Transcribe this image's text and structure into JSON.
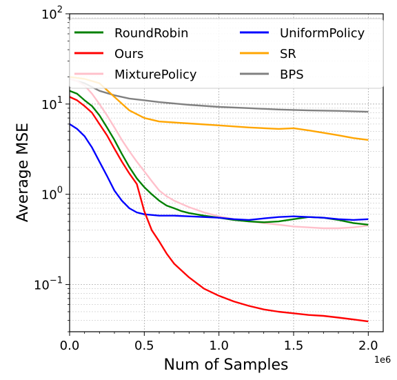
{
  "chart_data": {
    "type": "line",
    "xlabel": "Num of Samples",
    "ylabel": "Average MSE",
    "x_offset_label": "1e6",
    "xlim": [
      0,
      2100000
    ],
    "ylim": [
      0.03,
      100
    ],
    "yscale": "log",
    "grid": true,
    "legend_placement": "top",
    "x_ticks": [
      {
        "value": 0,
        "label": "0.0"
      },
      {
        "value": 500000,
        "label": "0.5"
      },
      {
        "value": 1000000,
        "label": "1.0"
      },
      {
        "value": 1500000,
        "label": "1.5"
      },
      {
        "value": 2000000,
        "label": "2.0"
      }
    ],
    "y_ticks": [
      {
        "value": 0.1,
        "base": "10",
        "exp": "−1"
      },
      {
        "value": 1,
        "base": "10",
        "exp": "0"
      },
      {
        "value": 10,
        "base": "10",
        "exp": "1"
      },
      {
        "value": 100,
        "base": "10",
        "exp": "2"
      }
    ],
    "series": [
      {
        "name": "RoundRobin",
        "color": "#008000",
        "x": [
          0,
          50000,
          100000,
          150000,
          200000,
          250000,
          300000,
          350000,
          400000,
          450000,
          500000,
          550000,
          600000,
          650000,
          700000,
          750000,
          800000,
          900000,
          1000000,
          1100000,
          1200000,
          1300000,
          1400000,
          1500000,
          1600000,
          1700000,
          1800000,
          1900000,
          2000000
        ],
        "y": [
          14,
          13,
          11,
          9.5,
          7.5,
          5.5,
          4.0,
          2.8,
          2.0,
          1.5,
          1.2,
          1.0,
          0.85,
          0.75,
          0.7,
          0.65,
          0.62,
          0.58,
          0.55,
          0.52,
          0.5,
          0.49,
          0.5,
          0.53,
          0.56,
          0.55,
          0.52,
          0.48,
          0.46
        ]
      },
      {
        "name": "Ours",
        "color": "#ff0000",
        "x": [
          0,
          50000,
          100000,
          150000,
          200000,
          250000,
          300000,
          350000,
          400000,
          450000,
          500000,
          550000,
          600000,
          650000,
          700000,
          800000,
          900000,
          1000000,
          1100000,
          1200000,
          1300000,
          1400000,
          1500000,
          1600000,
          1700000,
          1800000,
          1900000,
          2000000
        ],
        "y": [
          12,
          11,
          9.5,
          8.0,
          6.0,
          4.5,
          3.2,
          2.3,
          1.7,
          1.3,
          0.65,
          0.4,
          0.3,
          0.22,
          0.17,
          0.12,
          0.09,
          0.075,
          0.065,
          0.058,
          0.053,
          0.05,
          0.048,
          0.046,
          0.045,
          0.043,
          0.041,
          0.039
        ]
      },
      {
        "name": "MixturePolicy",
        "color": "#ffc0cb",
        "x": [
          0,
          50000,
          100000,
          150000,
          200000,
          250000,
          300000,
          350000,
          400000,
          450000,
          500000,
          550000,
          600000,
          650000,
          700000,
          800000,
          900000,
          1000000,
          1100000,
          1200000,
          1300000,
          1400000,
          1500000,
          1600000,
          1700000,
          1800000,
          1900000,
          2000000
        ],
        "y": [
          19,
          18,
          16,
          13,
          10,
          7.5,
          5.5,
          4.0,
          3.0,
          2.3,
          1.8,
          1.4,
          1.1,
          0.95,
          0.85,
          0.72,
          0.63,
          0.57,
          0.53,
          0.5,
          0.48,
          0.46,
          0.44,
          0.43,
          0.42,
          0.42,
          0.43,
          0.45
        ]
      },
      {
        "name": "UniformPolicy",
        "color": "#0000ff",
        "x": [
          0,
          50000,
          100000,
          150000,
          200000,
          250000,
          300000,
          350000,
          400000,
          450000,
          500000,
          600000,
          700000,
          800000,
          900000,
          1000000,
          1100000,
          1200000,
          1300000,
          1400000,
          1500000,
          1600000,
          1700000,
          1800000,
          1900000,
          2000000
        ],
        "y": [
          6.0,
          5.3,
          4.4,
          3.3,
          2.3,
          1.6,
          1.1,
          0.85,
          0.7,
          0.63,
          0.6,
          0.58,
          0.58,
          0.57,
          0.56,
          0.55,
          0.53,
          0.52,
          0.54,
          0.56,
          0.57,
          0.56,
          0.55,
          0.53,
          0.52,
          0.53
        ]
      },
      {
        "name": "SR",
        "color": "#ffa500",
        "x": [
          0,
          100000,
          200000,
          300000,
          400000,
          500000,
          600000,
          800000,
          1000000,
          1200000,
          1400000,
          1500000,
          1600000,
          1700000,
          1800000,
          1900000,
          2000000
        ],
        "y": [
          20,
          19,
          17,
          12,
          8.5,
          7.0,
          6.4,
          6.1,
          5.8,
          5.5,
          5.3,
          5.4,
          5.1,
          4.8,
          4.5,
          4.2,
          4.0
        ]
      },
      {
        "name": "BPS",
        "color": "#808080",
        "x": [
          0,
          100000,
          200000,
          300000,
          400000,
          500000,
          600000,
          800000,
          1000000,
          1200000,
          1400000,
          1600000,
          1800000,
          2000000
        ],
        "y": [
          19,
          17,
          14,
          12.5,
          11.5,
          11,
          10.5,
          9.8,
          9.3,
          9.0,
          8.7,
          8.5,
          8.4,
          8.2
        ]
      }
    ]
  }
}
